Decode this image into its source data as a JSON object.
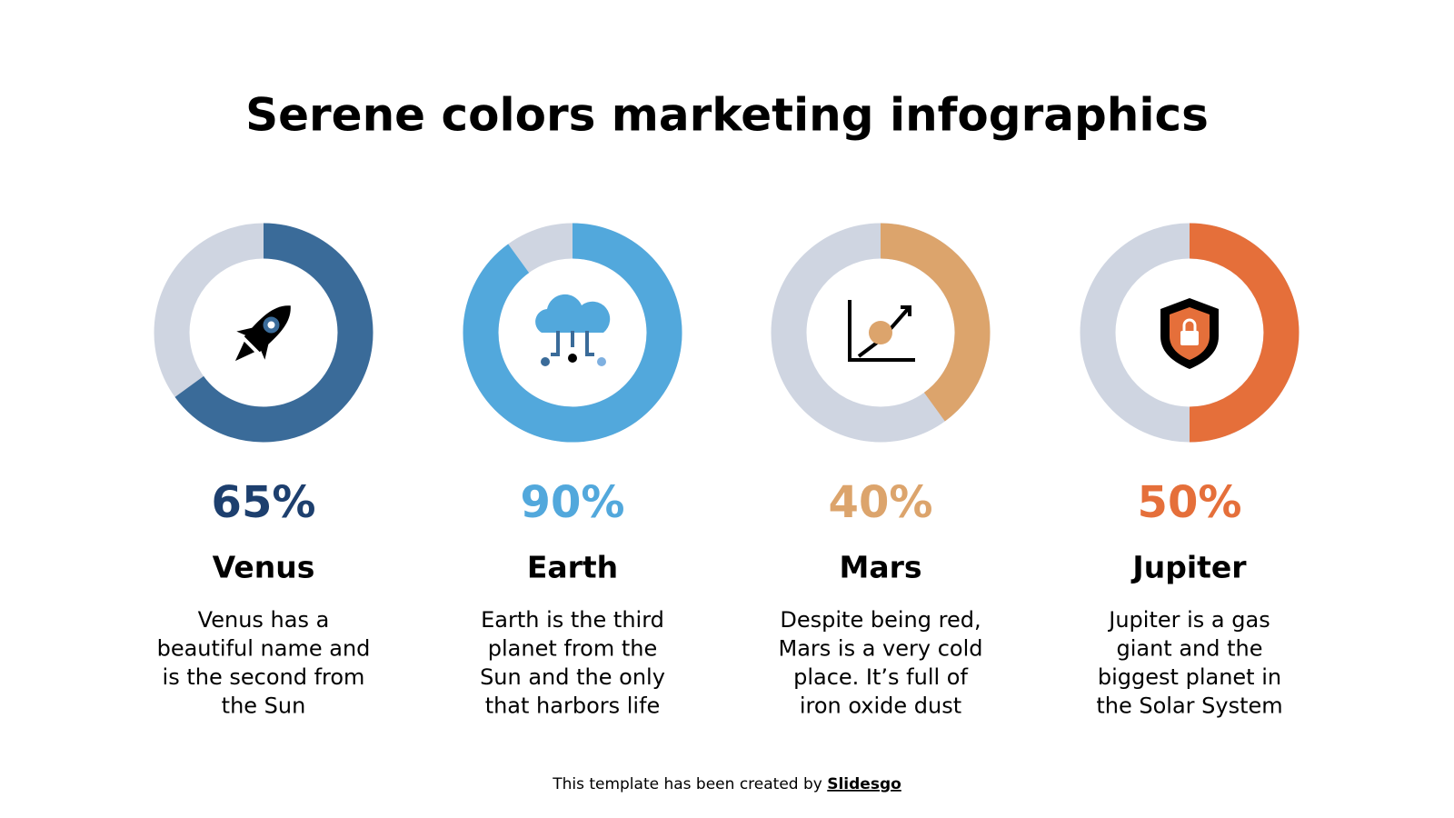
{
  "title": "Serene colors marketing infographics",
  "chart_data": [
    {
      "type": "donut",
      "name": "Venus",
      "values": [
        65
      ],
      "value_labels": [
        "65%"
      ],
      "color": "#3a6b99",
      "label_color": "#1d3f6e",
      "track_color": "#cfd5e1",
      "description": [
        "Venus has a",
        "beautiful name and",
        "is the second from",
        "the Sun"
      ]
    },
    {
      "type": "donut",
      "name": "Earth",
      "values": [
        90
      ],
      "value_labels": [
        "90%"
      ],
      "color": "#52a8dc",
      "label_color": "#52a8dc",
      "track_color": "#cfd5e1",
      "description": [
        "Earth is the third",
        "planet from the",
        "Sun and the only",
        "that harbors life"
      ]
    },
    {
      "type": "donut",
      "name": "Mars",
      "values": [
        40
      ],
      "value_labels": [
        "40%"
      ],
      "color": "#dca46c",
      "label_color": "#dca46c",
      "track_color": "#cfd5e1",
      "description": [
        "Despite being red,",
        "Mars is a very cold",
        "place. It’s full of",
        "iron oxide dust"
      ]
    },
    {
      "type": "donut",
      "name": "Jupiter",
      "values": [
        50
      ],
      "value_labels": [
        "50%"
      ],
      "color": "#e56f3a",
      "label_color": "#e56f3a",
      "track_color": "#cfd5e1",
      "description": [
        "Jupiter is a gas",
        "giant and the",
        "biggest planet in",
        "the Solar System"
      ]
    }
  ],
  "footer": {
    "text": "This template has been created by",
    "link": "Slidesgo"
  }
}
